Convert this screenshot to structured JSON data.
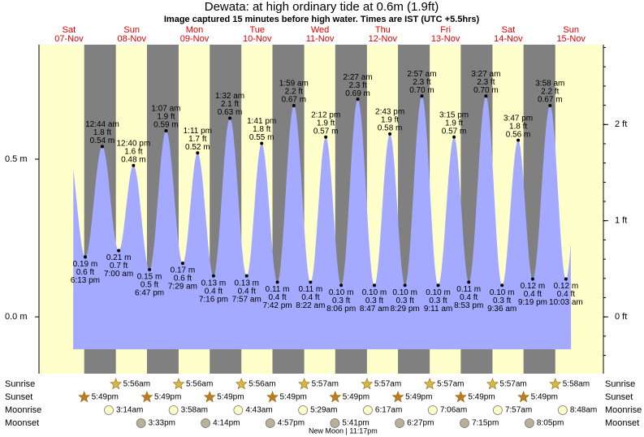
{
  "chart_data": {
    "type": "tide",
    "title": "Dewata: at high  ordinary tide at 0.6m (1.9ft)",
    "subtitle": "Image captured 15 minutes before high water. Times are IST (UTC +5.5hrs)",
    "days": [
      {
        "weekday": "Sat",
        "date": "07-Nov"
      },
      {
        "weekday": "Sun",
        "date": "08-Nov"
      },
      {
        "weekday": "Mon",
        "date": "09-Nov"
      },
      {
        "weekday": "Tue",
        "date": "10-Nov"
      },
      {
        "weekday": "Wed",
        "date": "11-Nov"
      },
      {
        "weekday": "Thu",
        "date": "12-Nov"
      },
      {
        "weekday": "Fri",
        "date": "13-Nov"
      },
      {
        "weekday": "Sat",
        "date": "14-Nov"
      },
      {
        "weekday": "Sun",
        "date": "15-Nov"
      }
    ],
    "ylim": [
      -0.18,
      0.863
    ],
    "yticks": [
      {
        "value": 0,
        "label": "0.0 m"
      },
      {
        "value": 0.5,
        "label": "0.5 m"
      }
    ],
    "y2lim": [
      -0.59,
      2.83
    ],
    "y2ticks": [
      {
        "value": 0,
        "label": "0 ft"
      },
      {
        "value": 1,
        "label": "1 ft"
      },
      {
        "value": 2,
        "label": "2 ft"
      }
    ],
    "colors": {
      "day": "#ffffcc",
      "night": "#808080",
      "water": "#a3aaff",
      "days": "#e00000"
    },
    "tides": [
      {
        "time": "6:13 pm",
        "height": {
          "value": 0.19,
          "label": "0.19 m"
        },
        "height_ft": {
          "value": 0.6,
          "label": "0.6 ft"
        }
      },
      {
        "time": "12:44 am",
        "height": {
          "value": 0.54,
          "label": "0.54 m"
        },
        "height_ft": {
          "value": 1.8,
          "label": "1.8 ft"
        }
      },
      {
        "time": "7:00 am",
        "height": {
          "value": 0.21,
          "label": "0.21 m"
        },
        "height_ft": {
          "value": 0.7,
          "label": "0.7 ft"
        }
      },
      {
        "time": "12:40 pm",
        "height": {
          "value": 0.48,
          "label": "0.48 m"
        },
        "height_ft": {
          "value": 1.6,
          "label": "1.6 ft"
        }
      },
      {
        "time": "6:47 pm",
        "height": {
          "value": 0.15,
          "label": "0.15 m"
        },
        "height_ft": {
          "value": 0.5,
          "label": "0.5 ft"
        }
      },
      {
        "time": "1:07 am",
        "height": {
          "value": 0.59,
          "label": "0.59 m"
        },
        "height_ft": {
          "value": 1.9,
          "label": "1.9 ft"
        }
      },
      {
        "time": "7:29 am",
        "height": {
          "value": 0.17,
          "label": "0.17 m"
        },
        "height_ft": {
          "value": 0.6,
          "label": "0.6 ft"
        }
      },
      {
        "time": "1:11 pm",
        "height": {
          "value": 0.52,
          "label": "0.52 m"
        },
        "height_ft": {
          "value": 1.7,
          "label": "1.7 ft"
        }
      },
      {
        "time": "7:16 pm",
        "height": {
          "value": 0.13,
          "label": "0.13 m"
        },
        "height_ft": {
          "value": 0.4,
          "label": "0.4 ft"
        }
      },
      {
        "time": "1:32 am",
        "height": {
          "value": 0.63,
          "label": "0.63 m"
        },
        "height_ft": {
          "value": 2.1,
          "label": "2.1 ft"
        }
      },
      {
        "time": "7:57 am",
        "height": {
          "value": 0.13,
          "label": "0.13 m"
        },
        "height_ft": {
          "value": 0.4,
          "label": "0.4 ft"
        }
      },
      {
        "time": "1:41 pm",
        "height": {
          "value": 0.55,
          "label": "0.55 m"
        },
        "height_ft": {
          "value": 1.8,
          "label": "1.8 ft"
        }
      },
      {
        "time": "7:42 pm",
        "height": {
          "value": 0.11,
          "label": "0.11 m"
        },
        "height_ft": {
          "value": 0.4,
          "label": "0.4 ft"
        }
      },
      {
        "time": "1:59 am",
        "height": {
          "value": 0.67,
          "label": "0.67 m"
        },
        "height_ft": {
          "value": 2.2,
          "label": "2.2 ft"
        }
      },
      {
        "time": "8:22 am",
        "height": {
          "value": 0.11,
          "label": "0.11 m"
        },
        "height_ft": {
          "value": 0.4,
          "label": "0.4 ft"
        }
      },
      {
        "time": "2:12 pm",
        "height": {
          "value": 0.57,
          "label": "0.57 m"
        },
        "height_ft": {
          "value": 1.9,
          "label": "1.9 ft"
        }
      },
      {
        "time": "8:06 pm",
        "height": {
          "value": 0.1,
          "label": "0.10 m"
        },
        "height_ft": {
          "value": 0.3,
          "label": "0.3 ft"
        }
      },
      {
        "time": "2:27 am",
        "height": {
          "value": 0.69,
          "label": "0.69 m"
        },
        "height_ft": {
          "value": 2.3,
          "label": "2.3 ft"
        }
      },
      {
        "time": "8:47 am",
        "height": {
          "value": 0.1,
          "label": "0.10 m"
        },
        "height_ft": {
          "value": 0.3,
          "label": "0.3 ft"
        }
      },
      {
        "time": "2:43 pm",
        "height": {
          "value": 0.58,
          "label": "0.58 m"
        },
        "height_ft": {
          "value": 1.9,
          "label": "1.9 ft"
        }
      },
      {
        "time": "8:29 pm",
        "height": {
          "value": 0.1,
          "label": "0.10 m"
        },
        "height_ft": {
          "value": 0.3,
          "label": "0.3 ft"
        }
      },
      {
        "time": "2:57 am",
        "height": {
          "value": 0.7,
          "label": "0.70 m"
        },
        "height_ft": {
          "value": 2.3,
          "label": "2.3 ft"
        }
      },
      {
        "time": "9:11 am",
        "height": {
          "value": 0.1,
          "label": "0.10 m"
        },
        "height_ft": {
          "value": 0.3,
          "label": "0.3 ft"
        }
      },
      {
        "time": "3:15 pm",
        "height": {
          "value": 0.57,
          "label": "0.57 m"
        },
        "height_ft": {
          "value": 1.9,
          "label": "1.9 ft"
        }
      },
      {
        "time": "8:53 pm",
        "height": {
          "value": 0.11,
          "label": "0.11 m"
        },
        "height_ft": {
          "value": 0.4,
          "label": "0.4 ft"
        }
      },
      {
        "time": "3:27 am",
        "height": {
          "value": 0.7,
          "label": "0.70 m"
        },
        "height_ft": {
          "value": 2.3,
          "label": "2.3 ft"
        }
      },
      {
        "time": "9:36 am",
        "height": {
          "value": 0.1,
          "label": "0.10 m"
        },
        "height_ft": {
          "value": 0.3,
          "label": "0.3 ft"
        }
      },
      {
        "time": "3:47 pm",
        "height": {
          "value": 0.56,
          "label": "0.56 m"
        },
        "height_ft": {
          "value": 1.8,
          "label": "1.8 ft"
        }
      },
      {
        "time": "9:19 pm",
        "height": {
          "value": 0.12,
          "label": "0.12 m"
        },
        "height_ft": {
          "value": 0.4,
          "label": "0.4 ft"
        }
      },
      {
        "time": "3:58 am",
        "height": {
          "value": 0.67,
          "label": "0.67 m"
        },
        "height_ft": {
          "value": 2.2,
          "label": "2.2 ft"
        }
      },
      {
        "time": "10:03 am",
        "height": {
          "value": 0.12,
          "label": "0.12 m"
        },
        "height_ft": {
          "value": 0.4,
          "label": "0.4 ft"
        }
      }
    ],
    "rows": [
      {
        "name": "Sunrise",
        "times": [
          null,
          "5:56am",
          "5:56am",
          "5:56am",
          "5:57am",
          "5:57am",
          "5:57am",
          "5:57am",
          "5:58am"
        ]
      },
      {
        "name": "Sunset",
        "times": [
          "5:49pm",
          "5:49pm",
          "5:49pm",
          "5:49pm",
          "5:49pm",
          "5:49pm",
          "5:49pm",
          "5:49pm",
          null
        ]
      },
      {
        "name": "Moonrise",
        "times": [
          null,
          "3:14am",
          "3:58am",
          "4:43am",
          "5:29am",
          "6:17am",
          "7:06am",
          "7:57am",
          "8:48am"
        ]
      },
      {
        "name": "Moonset",
        "times": [
          null,
          "3:33pm",
          "4:14pm",
          "4:57pm",
          "5:41pm",
          "6:27pm",
          "7:15pm",
          "8:05pm",
          null
        ]
      }
    ],
    "moon_phase": "New Moon | 11:17pm"
  }
}
